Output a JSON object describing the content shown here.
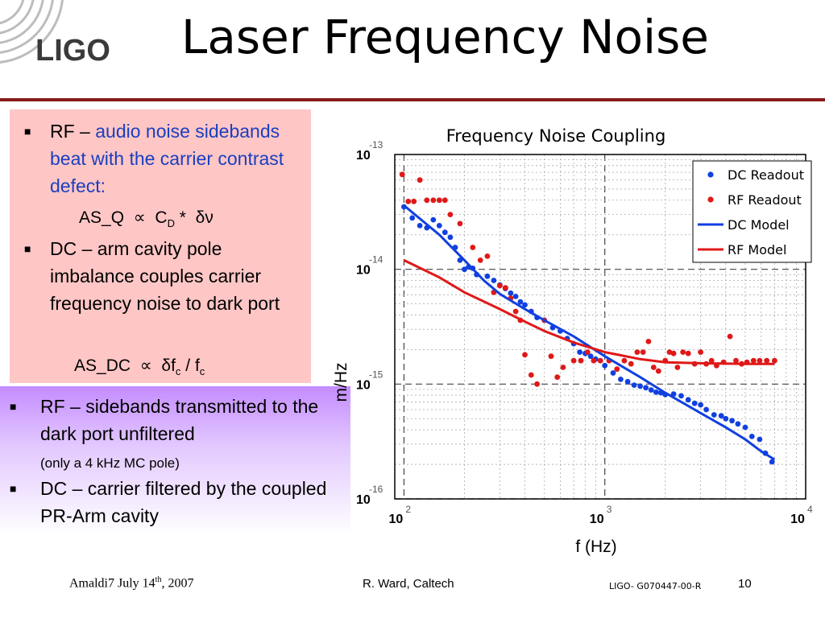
{
  "slide": {
    "title": "Laser Frequency Noise",
    "logo_text": "LIGO"
  },
  "box1": {
    "b1_lead": "RF – ",
    "b1_blue": "audio noise sidebands beat with the carrier contrast defect:",
    "f1": {
      "a": "AS_Q",
      "prop": "∝",
      "c": "C",
      "csub": "D",
      "star": "*",
      "dnu": "δν"
    },
    "b2_text": "DC – arm cavity pole imbalance couples carrier frequency noise to dark port",
    "f2": {
      "a": "AS_DC",
      "prop": "∝",
      "df": "δf",
      "dfsub": "c",
      "slash": "/",
      "f": "f",
      "fsub": "c"
    }
  },
  "box2": {
    "b1_text": "RF – sidebands transmitted to the dark port unfiltered",
    "b1_small": "(only a 4 kHz MC pole)",
    "b2_text": "DC – carrier filtered by the coupled PR-Arm cavity"
  },
  "footer": {
    "left_pre": "Amaldi7 July 14",
    "left_sup": "th",
    "left_post": ", 2007",
    "middle": "R. Ward, Caltech",
    "right": "LIGO- G070447-00-R",
    "page": "10"
  },
  "colors": {
    "title_rule": "#8a1a1a",
    "dc": "#1040e0",
    "rf": "#e01818"
  },
  "chart_data": {
    "type": "scatter",
    "title": "Frequency Noise Coupling",
    "xlabel": "f (Hz)",
    "ylabel": "m/Hz",
    "x_scale": "log",
    "y_scale": "log",
    "xlim": [
      90,
      10000
    ],
    "ylim": [
      1e-16,
      1e-13
    ],
    "x_ticks": [
      {
        "base": "10",
        "exp": "2",
        "value": 100
      },
      {
        "base": "10",
        "exp": "3",
        "value": 1000
      },
      {
        "base": "10",
        "exp": "4",
        "value": 10000
      }
    ],
    "y_ticks": [
      {
        "base": "10",
        "exp": "-13",
        "value": 1e-13
      },
      {
        "base": "10",
        "exp": "-14",
        "value": 1e-14
      },
      {
        "base": "10",
        "exp": "-15",
        "value": 1e-15
      },
      {
        "base": "10",
        "exp": "-16",
        "value": 1e-16
      }
    ],
    "grid": true,
    "legend_position": "top-right",
    "series": [
      {
        "name": "DC Readout",
        "kind": "points",
        "color": "#1040e0",
        "points": [
          [
            100,
            3.5e-14
          ],
          [
            110,
            2.8e-14
          ],
          [
            120,
            2.4e-14
          ],
          [
            130,
            2.3e-14
          ],
          [
            140,
            2.7e-14
          ],
          [
            150,
            2.4e-14
          ],
          [
            160,
            2.1e-14
          ],
          [
            170,
            1.9e-14
          ],
          [
            180,
            1.55e-14
          ],
          [
            190,
            1.2e-14
          ],
          [
            200,
            1e-14
          ],
          [
            210,
            1.05e-14
          ],
          [
            220,
            1.02e-14
          ],
          [
            230,
            9e-15
          ],
          [
            260,
            8.7e-15
          ],
          [
            280,
            8e-15
          ],
          [
            300,
            7.3e-15
          ],
          [
            320,
            6.8e-15
          ],
          [
            340,
            6.2e-15
          ],
          [
            360,
            5.8e-15
          ],
          [
            380,
            5.2e-15
          ],
          [
            400,
            4.9e-15
          ],
          [
            430,
            4.3e-15
          ],
          [
            460,
            3.8e-15
          ],
          [
            500,
            3.6e-15
          ],
          [
            550,
            3.1e-15
          ],
          [
            600,
            2.9e-15
          ],
          [
            650,
            2.5e-15
          ],
          [
            700,
            2.25e-15
          ],
          [
            750,
            1.9e-15
          ],
          [
            800,
            1.85e-15
          ],
          [
            850,
            1.75e-15
          ],
          [
            900,
            1.65e-15
          ],
          [
            1000,
            1.45e-15
          ],
          [
            1100,
            1.25e-15
          ],
          [
            1200,
            1.1e-15
          ],
          [
            1300,
            1.05e-15
          ],
          [
            1400,
            9.8e-16
          ],
          [
            1500,
            9.6e-16
          ],
          [
            1600,
            9.3e-16
          ],
          [
            1700,
            8.9e-16
          ],
          [
            1800,
            8.5e-16
          ],
          [
            1900,
            8.4e-16
          ],
          [
            2000,
            8.1e-16
          ],
          [
            2200,
            8.2e-16
          ],
          [
            2400,
            7.9e-16
          ],
          [
            2600,
            7.3e-16
          ],
          [
            2800,
            6.8e-16
          ],
          [
            3000,
            6.6e-16
          ],
          [
            3200,
            6e-16
          ],
          [
            3500,
            5.4e-16
          ],
          [
            3800,
            5.3e-16
          ],
          [
            4000,
            5e-16
          ],
          [
            4300,
            4.8e-16
          ],
          [
            4600,
            4.5e-16
          ],
          [
            5000,
            4.2e-16
          ],
          [
            5400,
            3.5e-16
          ],
          [
            5900,
            3.3e-16
          ],
          [
            6300,
            2.5e-16
          ],
          [
            6800,
            2.1e-16
          ]
        ]
      },
      {
        "name": "RF Readout",
        "kind": "points",
        "color": "#e01818",
        "points": [
          [
            98,
            6.7e-14
          ],
          [
            105,
            3.9e-14
          ],
          [
            112,
            3.9e-14
          ],
          [
            120,
            6e-14
          ],
          [
            130,
            4e-14
          ],
          [
            140,
            4e-14
          ],
          [
            150,
            4e-14
          ],
          [
            160,
            4e-14
          ],
          [
            170,
            3e-14
          ],
          [
            190,
            2.5e-14
          ],
          [
            220,
            1.55e-14
          ],
          [
            240,
            1.2e-14
          ],
          [
            260,
            1.3e-14
          ],
          [
            280,
            6.3e-15
          ],
          [
            300,
            7.2e-15
          ],
          [
            320,
            6.9e-15
          ],
          [
            340,
            5.6e-15
          ],
          [
            360,
            4.3e-15
          ],
          [
            380,
            3.6e-15
          ],
          [
            400,
            1.8e-15
          ],
          [
            430,
            1.2e-15
          ],
          [
            460,
            1e-15
          ],
          [
            500,
            3.6e-15
          ],
          [
            540,
            1.75e-15
          ],
          [
            580,
            1.15e-15
          ],
          [
            620,
            1.4e-15
          ],
          [
            700,
            1.6e-15
          ],
          [
            760,
            1.6e-15
          ],
          [
            820,
            1.9e-15
          ],
          [
            880,
            1.6e-15
          ],
          [
            950,
            1.6e-15
          ],
          [
            1050,
            1.6e-15
          ],
          [
            1150,
            1.35e-15
          ],
          [
            1250,
            1.6e-15
          ],
          [
            1350,
            1.5e-15
          ],
          [
            1450,
            1.9e-15
          ],
          [
            1550,
            1.9e-15
          ],
          [
            1650,
            2.35e-15
          ],
          [
            1750,
            1.4e-15
          ],
          [
            1850,
            1.3e-15
          ],
          [
            2000,
            1.6e-15
          ],
          [
            2100,
            1.9e-15
          ],
          [
            2200,
            1.85e-15
          ],
          [
            2300,
            1.4e-15
          ],
          [
            2450,
            1.9e-15
          ],
          [
            2600,
            1.85e-15
          ],
          [
            2800,
            1.5e-15
          ],
          [
            3000,
            1.9e-15
          ],
          [
            3200,
            1.5e-15
          ],
          [
            3400,
            1.6e-15
          ],
          [
            3600,
            1.45e-15
          ],
          [
            3900,
            1.55e-15
          ],
          [
            4200,
            2.6e-15
          ],
          [
            4500,
            1.6e-15
          ],
          [
            4800,
            1.5e-15
          ],
          [
            5100,
            1.55e-15
          ],
          [
            5500,
            1.6e-15
          ],
          [
            5900,
            1.6e-15
          ],
          [
            6400,
            1.6e-15
          ],
          [
            7000,
            1.6e-15
          ]
        ]
      },
      {
        "name": "DC Model",
        "kind": "line",
        "color": "#1040e0",
        "points": [
          [
            100,
            3.6e-14
          ],
          [
            150,
            2e-14
          ],
          [
            200,
            1.2e-14
          ],
          [
            250,
            8e-15
          ],
          [
            300,
            6.1e-15
          ],
          [
            400,
            4.5e-15
          ],
          [
            500,
            3.6e-15
          ],
          [
            700,
            2.6e-15
          ],
          [
            1000,
            1.75e-15
          ],
          [
            1500,
            1.15e-15
          ],
          [
            2000,
            8.4e-16
          ],
          [
            3000,
            5.6e-16
          ],
          [
            4000,
            4.2e-16
          ],
          [
            5000,
            3.3e-16
          ],
          [
            6000,
            2.6e-16
          ],
          [
            7000,
            2.2e-16
          ]
        ]
      },
      {
        "name": "RF Model",
        "kind": "line",
        "color": "#e01818",
        "points": [
          [
            100,
            1.2e-14
          ],
          [
            150,
            8.5e-15
          ],
          [
            200,
            6.3e-15
          ],
          [
            300,
            4.5e-15
          ],
          [
            400,
            3.5e-15
          ],
          [
            500,
            2.9e-15
          ],
          [
            700,
            2.3e-15
          ],
          [
            1000,
            1.9e-15
          ],
          [
            1500,
            1.65e-15
          ],
          [
            2000,
            1.55e-15
          ],
          [
            3000,
            1.52e-15
          ],
          [
            5000,
            1.5e-15
          ],
          [
            7000,
            1.5e-15
          ]
        ]
      }
    ]
  }
}
